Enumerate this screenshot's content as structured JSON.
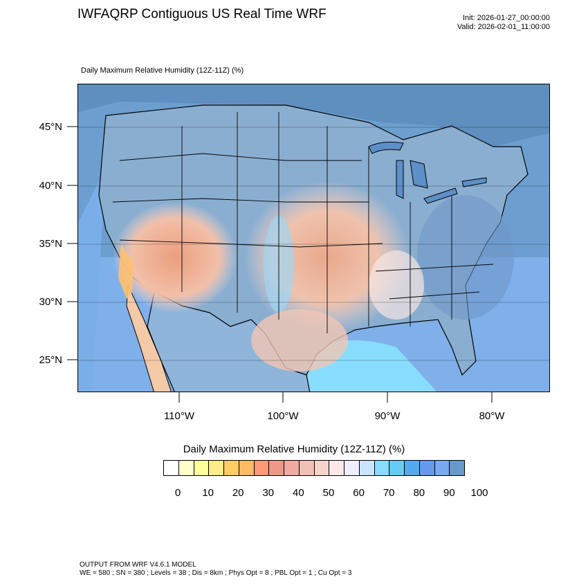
{
  "header": {
    "title": "IWFAQRP Contiguous US Real Time WRF",
    "init": "Init: 2026-01-27_00:00:00",
    "valid": "Valid: 2026-02-01_11:00:00"
  },
  "plot": {
    "subtitle": "Daily Maximum Relative Humidity (12Z-11Z)   (%)",
    "lat_labels": [
      "45°N",
      "40°N",
      "35°N",
      "30°N",
      "25°N"
    ],
    "lon_labels": [
      "110°W",
      "100°W",
      "90°W",
      "80°W"
    ]
  },
  "colorbar": {
    "title": "Daily Maximum Relative Humidity (12Z-11Z)  (%)",
    "colors": [
      "#ffffff",
      "#ffffcc",
      "#ffff99",
      "#ffee88",
      "#ffcc66",
      "#ffbb66",
      "#ff9977",
      "#ee9988",
      "#f0aaa0",
      "#f2c0b5",
      "#f4d4cc",
      "#fce8e8",
      "#eeeeff",
      "#cce5ff",
      "#88ddff",
      "#66ccf5",
      "#55aaee",
      "#6699ee",
      "#77aaee",
      "#6699cc"
    ],
    "ticks": [
      "0",
      "10",
      "20",
      "30",
      "40",
      "50",
      "60",
      "70",
      "80",
      "90",
      "100"
    ]
  },
  "footer": {
    "line1": "OUTPUT FROM WRF V4.6.1 MODEL",
    "line2": "WE = 580 ; SN = 380 ; Levels = 38 ; Dis = 8km ; Phys Opt = 8 ; PBL Opt = 1 ; Cu Opt = 3"
  }
}
